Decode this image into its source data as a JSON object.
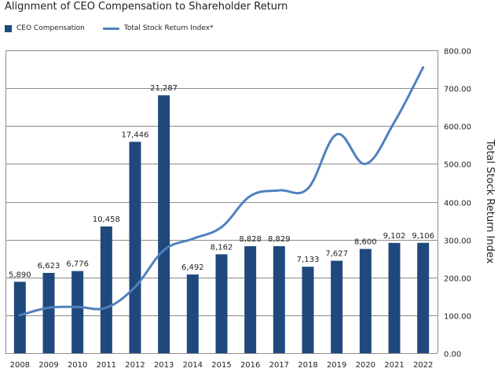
{
  "chart_data": {
    "type": "bar+line",
    "title": "Alignment of CEO Compensation to Shareholder Return",
    "categories": [
      "2008",
      "2009",
      "2010",
      "2011",
      "2012",
      "2013",
      "2014",
      "2015",
      "2016",
      "2017",
      "2018",
      "2019",
      "2020",
      "2021",
      "2022"
    ],
    "series": [
      {
        "name": "CEO  Compensation",
        "type": "bar",
        "axis": "none",
        "values": [
          5890,
          6623,
          6776,
          10458,
          17446,
          21287,
          6492,
          8162,
          8828,
          8829,
          7133,
          7627,
          8600,
          9102,
          9106
        ],
        "labels": [
          "5,890",
          "6,623",
          "6,776",
          "10,458",
          "17,446",
          "21,287",
          "6,492",
          "8,162",
          "8,828",
          "8,829",
          "7,133",
          "7,627",
          "8,600",
          "9,102",
          "9,106"
        ]
      },
      {
        "name": "Total Stock Return Index*",
        "type": "line",
        "axis": "right",
        "values": [
          100,
          120,
          122,
          120,
          175,
          272,
          302,
          333,
          415,
          430,
          435,
          578,
          500,
          610,
          755
        ]
      }
    ],
    "y2label": "Total Stock Return Index",
    "y2lim": [
      0,
      800
    ],
    "y2ticks": [
      "0.00",
      "100.00",
      "200.00",
      "300.00",
      "400.00",
      "500.00",
      "600.00",
      "700.00",
      "800.00"
    ],
    "bar_value_max_equiv": 25000,
    "grid": true,
    "legend": "top-left",
    "colors": {
      "bar": "#1f497d",
      "line": "#4f81bd",
      "grid": "#8c8c8c",
      "axis": "#555555"
    }
  }
}
